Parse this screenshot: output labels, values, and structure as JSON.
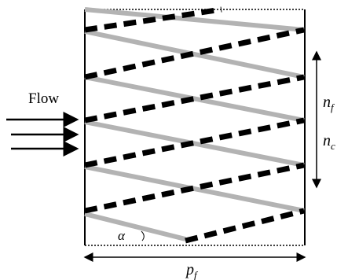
{
  "labels": {
    "flow": "Flow",
    "nf_base": "n",
    "nf_sub": "f",
    "nc_base": "n",
    "nc_sub": "c",
    "pf_base": "p",
    "pf_sub": "f",
    "alpha": "α"
  },
  "colors": {
    "frame": "#000000",
    "dashed_band": "#000000",
    "solid_band": "#b3b3b3",
    "background": "#ffffff"
  },
  "icons": {
    "flow_arrows": "right-arrow-icon",
    "height_arrow": "double-headed-vertical-arrow-icon",
    "width_arrow": "double-headed-horizontal-arrow-icon",
    "angle_arc": "angle-arc-icon"
  }
}
